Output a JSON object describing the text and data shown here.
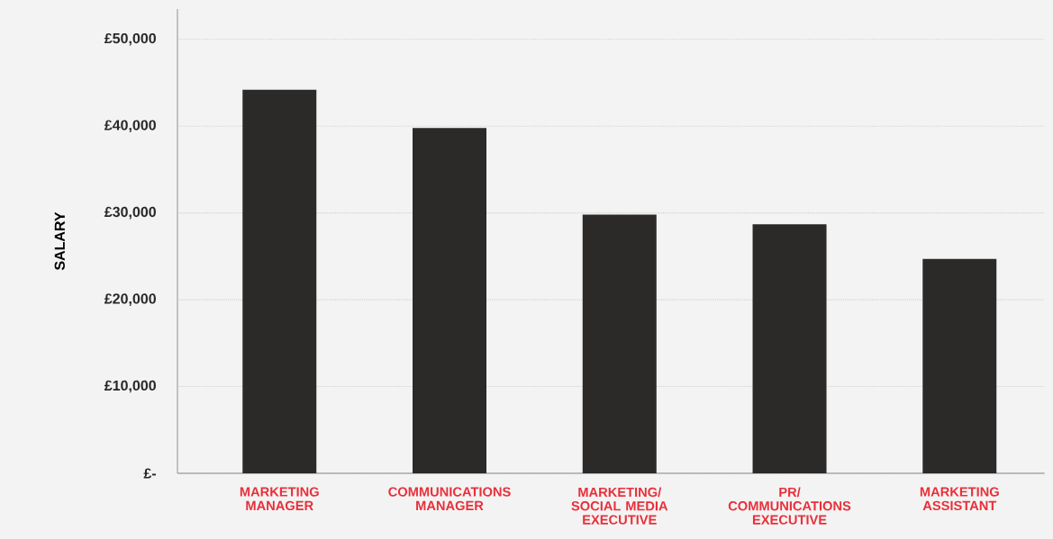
{
  "chart_data": {
    "type": "bar",
    "ylabel": "SALARY",
    "categories": [
      "MARKETING MANAGER",
      "COMMUNICATIONS MANAGER",
      "MARKETING/ SOCIAL MEDIA EXECUTIVE",
      "PR/ COMMUNICATIONS EXECUTIVE",
      "MARKETING ASSISTANT"
    ],
    "values": [
      44200,
      39800,
      29800,
      28700,
      24700
    ],
    "color": "#2b2a29",
    "ylim": [
      0,
      53500
    ],
    "yticks": [
      {
        "value": 0,
        "label": "£-"
      },
      {
        "value": 10000,
        "label": "£10,000"
      },
      {
        "value": 20000,
        "label": "£20,000"
      },
      {
        "value": 30000,
        "label": "£30,000"
      },
      {
        "value": 40000,
        "label": "£40,000"
      },
      {
        "value": 50000,
        "label": "£50,000"
      }
    ],
    "grid": "y"
  }
}
